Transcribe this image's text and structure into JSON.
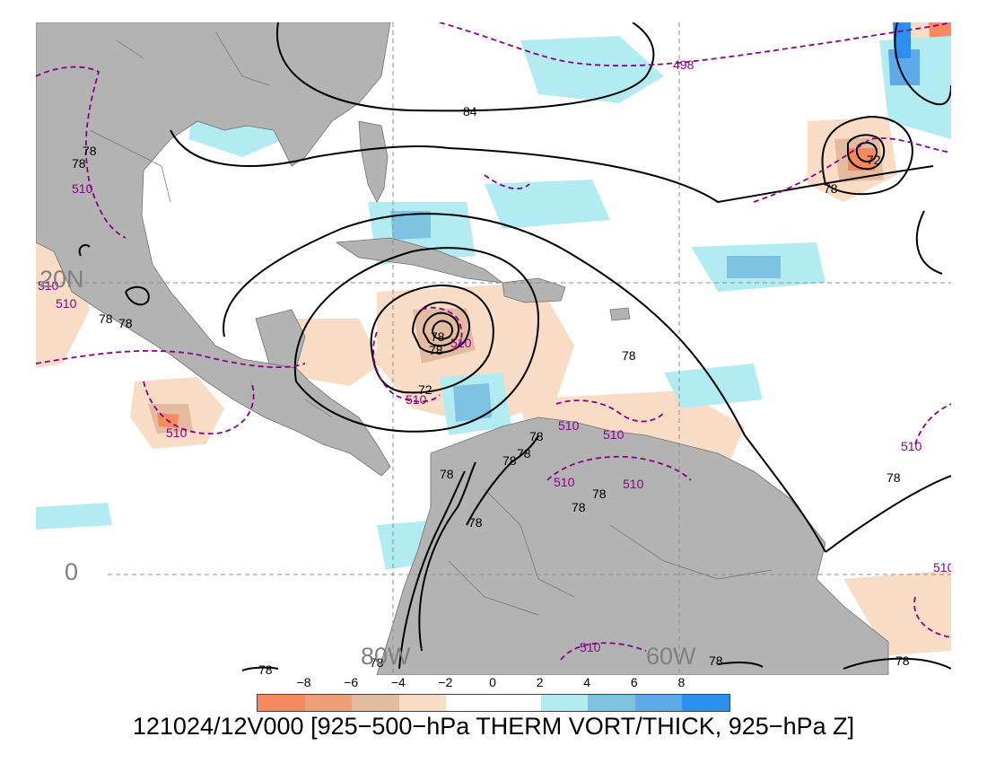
{
  "caption": "121024/12V000 [925−500−hPa THERM VORT/THICK, 925−hPa Z]",
  "grid_labels": {
    "lat_0": "0",
    "lat_20n": "20N",
    "lon_80w": "80W",
    "lon_60w": "60W"
  },
  "colorbar": {
    "ticks": [
      "−8",
      "−6",
      "−4",
      "−2",
      "0",
      "2",
      "4",
      "6",
      "8"
    ],
    "colors": [
      "#f58a60",
      "#ee9f78",
      "#e3bca0",
      "#f8dcc6",
      "#ffffff",
      "#ffffff",
      "#b2ecf2",
      "#7ec3e2",
      "#5ea9e8",
      "#2b8ff0"
    ]
  },
  "colors": {
    "land": "#b3b3b3",
    "height_contour": "#000000",
    "thickness_contour": "#8b008b",
    "grid": "#8c8c8c"
  },
  "height_contour_labels": [
    "84",
    "78",
    "78",
    "78",
    "78",
    "78",
    "72",
    "72",
    "78",
    "78",
    "78",
    "78",
    "78",
    "78",
    "78",
    "78",
    "78",
    "78",
    "78",
    "78",
    "78",
    "78",
    "78"
  ],
  "thickness_contour_labels": [
    "498",
    "510",
    "510",
    "510",
    "510",
    "510",
    "510",
    "510",
    "510",
    "510",
    "510",
    "510",
    "510",
    "510"
  ]
}
